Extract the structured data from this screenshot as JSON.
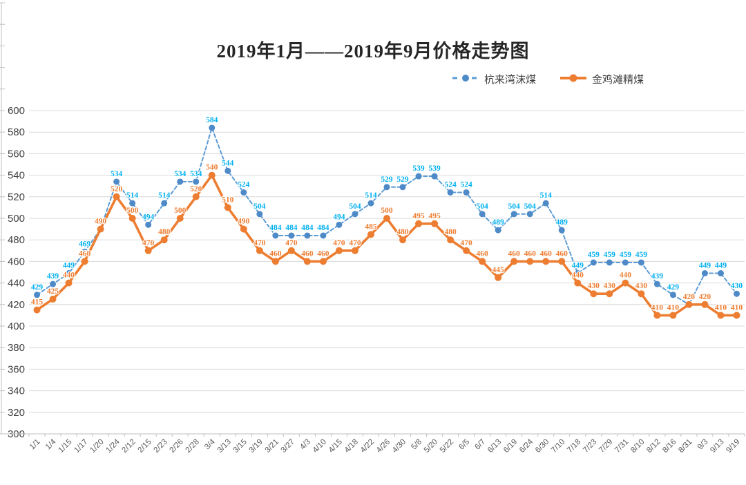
{
  "chart_data": {
    "type": "line",
    "title": "2019年1月——2019年9月价格走势图",
    "categories": [
      "1/1",
      "1/4",
      "1/15",
      "1/17",
      "1/20",
      "1/24",
      "2/12",
      "2/15",
      "2/23",
      "2/26",
      "2/28",
      "3/4",
      "3/13",
      "3/15",
      "3/19",
      "3/21",
      "3/27",
      "4/3",
      "4/10",
      "4/15",
      "4/18",
      "4/22",
      "4/26",
      "4/30",
      "5/8",
      "5/20",
      "5/22",
      "6/5",
      "6/7",
      "6/13",
      "6/19",
      "6/24",
      "6/30",
      "7/10",
      "7/18",
      "7/23",
      "7/29",
      "7/31",
      "8/10",
      "8/12",
      "8/16",
      "8/31",
      "9/3",
      "9/13",
      "9/19"
    ],
    "series": [
      {
        "name": "杭来湾沫煤",
        "style": "dashed",
        "line_color": "#5B9BD5",
        "marker_color": "#4E8AC8",
        "label_color": "#00B0F0",
        "values": [
          429,
          439,
          449,
          469,
          490,
          534,
          514,
          494,
          514,
          534,
          534,
          584,
          544,
          524,
          504,
          484,
          484,
          484,
          484,
          494,
          504,
          514,
          529,
          529,
          539,
          539,
          524,
          524,
          504,
          489,
          504,
          504,
          514,
          489,
          449,
          459,
          459,
          459,
          459,
          439,
          429,
          420,
          449,
          449,
          430
        ]
      },
      {
        "name": "金鸡滩精煤",
        "style": "solid",
        "line_color": "#ED7D31",
        "marker_color": "#ED7D31",
        "label_color": "#ED7D31",
        "values": [
          415,
          425,
          440,
          460,
          490,
          520,
          500,
          470,
          480,
          500,
          520,
          540,
          510,
          490,
          470,
          460,
          470,
          460,
          460,
          470,
          470,
          485,
          500,
          480,
          495,
          495,
          480,
          470,
          460,
          445,
          460,
          460,
          460,
          460,
          440,
          430,
          430,
          440,
          430,
          410,
          410,
          420,
          420,
          410,
          410
        ]
      }
    ],
    "ylabel": "",
    "xlabel": "",
    "ylim": [
      300,
      600
    ],
    "y_ticks": [
      600,
      580,
      560,
      540,
      520,
      500,
      480,
      460,
      440,
      420,
      400,
      380,
      360,
      340,
      320,
      300
    ],
    "grid": true,
    "legend_position": "top-right",
    "show_data_labels": true,
    "colors": {
      "gridline": "#D9D9D9",
      "axis_line": "#BFBFBF",
      "y_tick_text": "#404040",
      "x_tick_text": "#595959",
      "title_text": "#262626",
      "background": "#FFFFFF"
    }
  }
}
